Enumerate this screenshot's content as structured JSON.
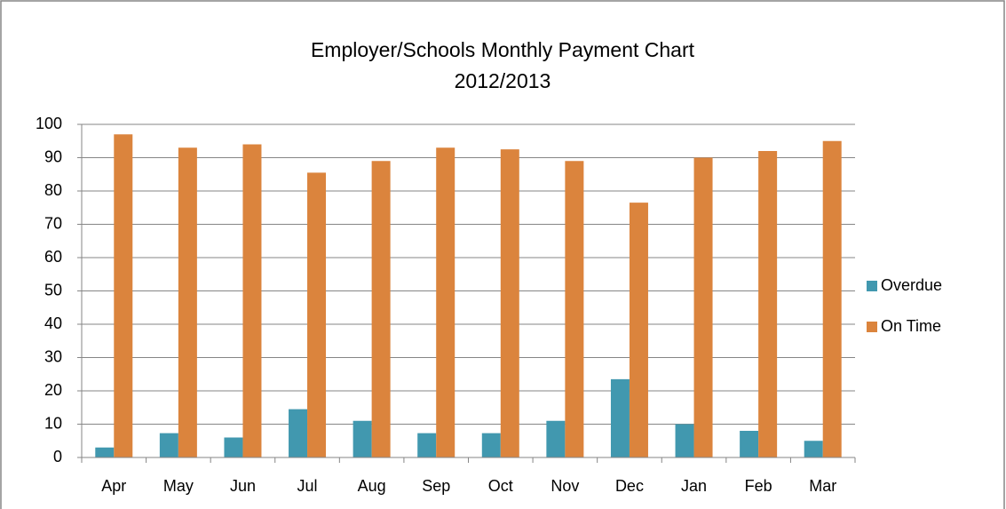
{
  "chart_data": {
    "type": "bar",
    "title": "Employer/Schools Monthly Payment Chart",
    "subtitle": "2012/2013",
    "categories": [
      "Apr",
      "May",
      "Jun",
      "Jul",
      "Aug",
      "Sep",
      "Oct",
      "Nov",
      "Dec",
      "Jan",
      "Feb",
      "Mar"
    ],
    "series": [
      {
        "name": "Overdue",
        "color": "#4198af",
        "values": [
          3,
          7.3,
          6,
          14.5,
          11,
          7.3,
          7.3,
          11,
          23.5,
          10,
          8,
          5
        ]
      },
      {
        "name": "On Time",
        "color": "#db843d",
        "values": [
          97,
          93,
          94,
          85.5,
          89,
          93,
          92.5,
          89,
          76.5,
          90,
          92,
          95
        ]
      }
    ],
    "ylim": [
      0,
      100
    ],
    "yticks": [
      0,
      10,
      20,
      30,
      40,
      50,
      60,
      70,
      80,
      90,
      100
    ],
    "grid": true,
    "legend": "right"
  }
}
